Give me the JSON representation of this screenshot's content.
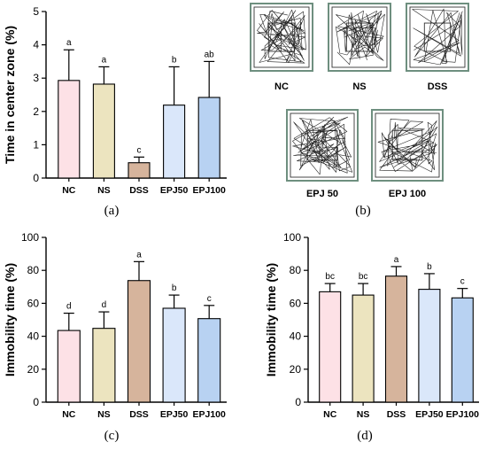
{
  "panel_labels": [
    "(a)",
    "(b)",
    "(c)",
    "(d)"
  ],
  "colors": {
    "NC": "#fde1e6",
    "NS": "#ece4bf",
    "DSS": "#d6b49c",
    "EPJ50": "#dae7fa",
    "EPJ100": "#b8d2f2",
    "outline": "#000000",
    "track_frame": "#6e8f7f"
  },
  "track_panel": {
    "labels": [
      "NC",
      "NS",
      "DSS",
      "EPJ 50",
      "EPJ 100"
    ]
  },
  "chart_data": [
    {
      "panel": "(a)",
      "type": "bar",
      "ylabel": "Time in center zone (%)",
      "ylim": [
        0,
        5
      ],
      "yticks": [
        0,
        1,
        2,
        3,
        4,
        5
      ],
      "categories": [
        "NC",
        "NS",
        "DSS",
        "EPJ50",
        "EPJ100"
      ],
      "values": [
        2.93,
        2.82,
        0.46,
        2.19,
        2.42
      ],
      "errors": [
        0.92,
        0.52,
        0.17,
        1.15,
        1.08
      ],
      "significance": [
        "a",
        "a",
        "c",
        "b",
        "ab"
      ],
      "grid": false
    },
    {
      "panel": "(c)",
      "type": "bar",
      "ylabel": "Immobility time (%)",
      "ylim": [
        0,
        100
      ],
      "yticks": [
        0,
        20,
        40,
        60,
        80,
        100
      ],
      "categories": [
        "NC",
        "NS",
        "DSS",
        "EPJ50",
        "EPJ100"
      ],
      "values": [
        43.5,
        44.8,
        73.8,
        57.0,
        50.7
      ],
      "errors": [
        10.5,
        10.0,
        11.5,
        8.0,
        8.0
      ],
      "significance": [
        "d",
        "d",
        "a",
        "b",
        "c"
      ],
      "grid": false
    },
    {
      "panel": "(d)",
      "type": "bar",
      "ylabel": "Immobility time (%)",
      "ylim": [
        0,
        100
      ],
      "yticks": [
        0,
        20,
        40,
        60,
        80,
        100
      ],
      "categories": [
        "NC",
        "NS",
        "DSS",
        "EPJ50",
        "EPJ100"
      ],
      "values": [
        67.0,
        65.0,
        76.5,
        68.5,
        63.3
      ],
      "errors": [
        5.0,
        7.0,
        5.8,
        9.5,
        5.7
      ],
      "significance": [
        "bc",
        "bc",
        "a",
        "b",
        "c"
      ],
      "grid": false
    }
  ]
}
